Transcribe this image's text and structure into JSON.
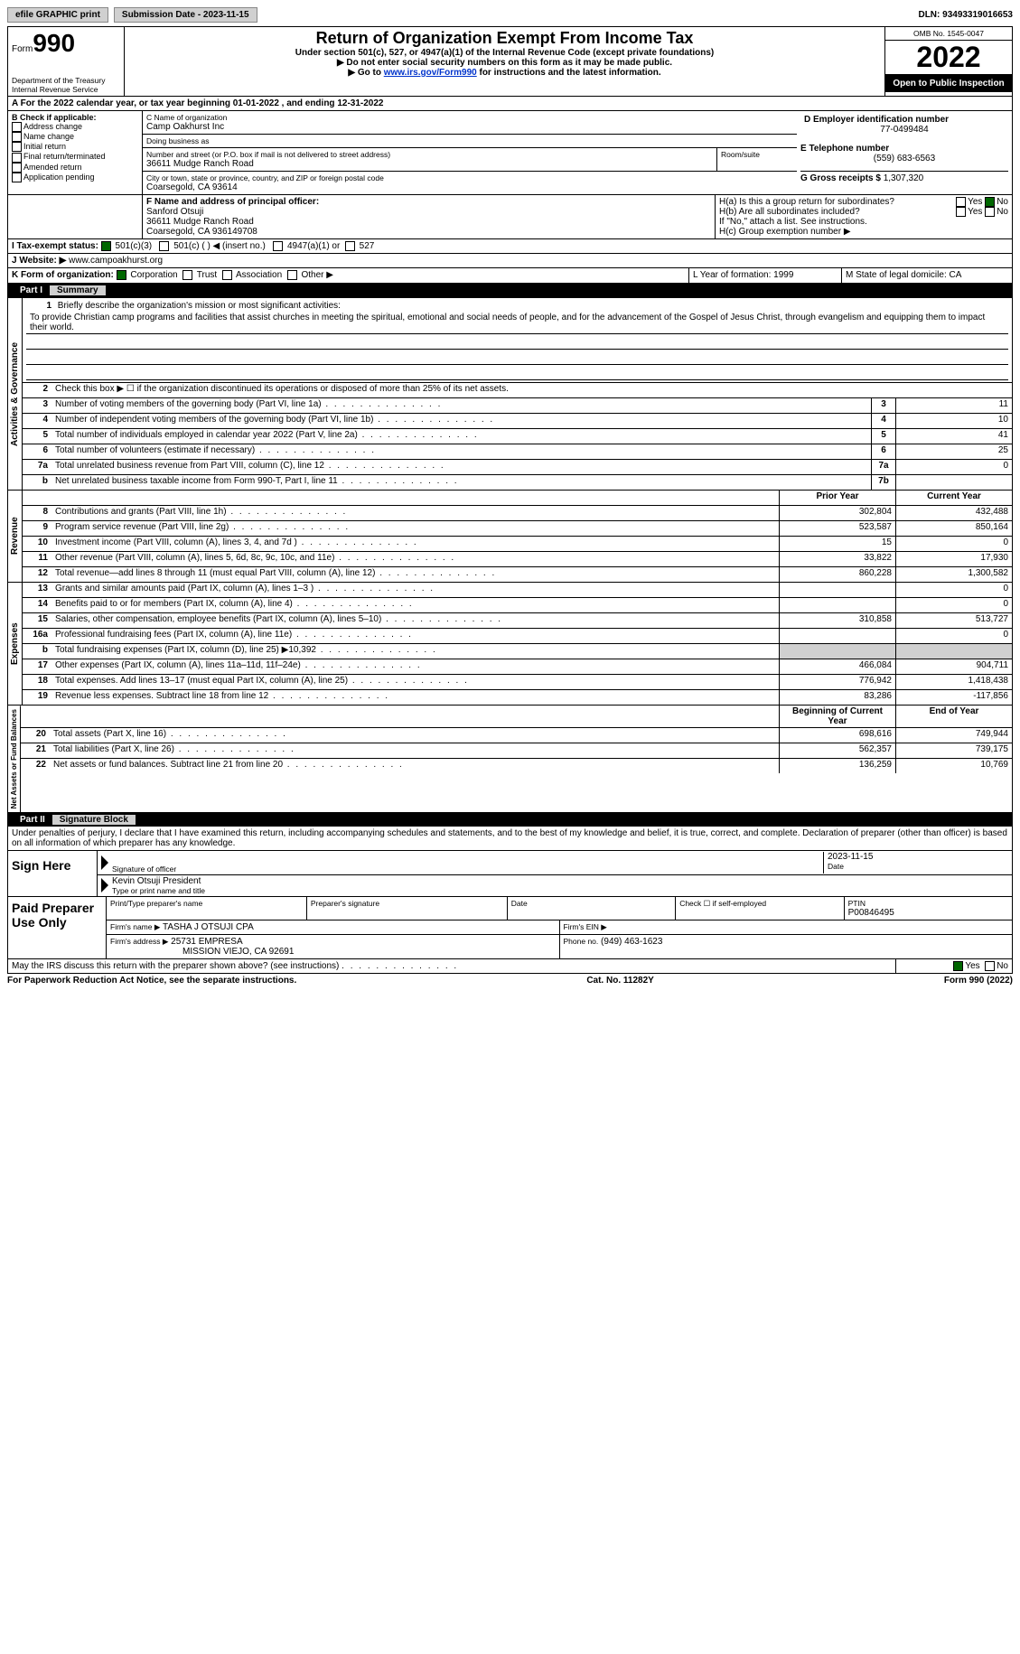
{
  "topbar": {
    "efile": "efile GRAPHIC print",
    "submission": "Submission Date - 2023-11-15",
    "dln": "DLN: 93493319016653"
  },
  "header": {
    "form_label": "Form",
    "form_number": "990",
    "title": "Return of Organization Exempt From Income Tax",
    "subtitle": "Under section 501(c), 527, or 4947(a)(1) of the Internal Revenue Code (except private foundations)",
    "note1": "▶ Do not enter social security numbers on this form as it may be made public.",
    "note2_pre": "▶ Go to ",
    "note2_link": "www.irs.gov/Form990",
    "note2_post": " for instructions and the latest information.",
    "dept": "Department of the Treasury",
    "irs": "Internal Revenue Service",
    "omb": "OMB No. 1545-0047",
    "year": "2022",
    "inspection": "Open to Public Inspection"
  },
  "sectionA": {
    "text": "A For the 2022 calendar year, or tax year beginning 01-01-2022    , and ending 12-31-2022"
  },
  "sectionB": {
    "label": "B Check if applicable:",
    "opts": [
      "Address change",
      "Name change",
      "Initial return",
      "Final return/terminated",
      "Amended return",
      "Application pending"
    ]
  },
  "sectionC": {
    "name_label": "C Name of organization",
    "name": "Camp Oakhurst Inc",
    "dba_label": "Doing business as",
    "dba": "",
    "street_label": "Number and street (or P.O. box if mail is not delivered to street address)",
    "street": "36611 Mudge Ranch Road",
    "room_label": "Room/suite",
    "city_label": "City or town, state or province, country, and ZIP or foreign postal code",
    "city": "Coarsegold, CA  93614"
  },
  "sectionD": {
    "label": "D Employer identification number",
    "ein": "77-0499484"
  },
  "sectionE": {
    "label": "E Telephone number",
    "phone": "(559) 683-6563"
  },
  "sectionG": {
    "label": "G Gross receipts $",
    "amount": "1,307,320"
  },
  "sectionF": {
    "label": "F  Name and address of principal officer:",
    "name": "Sanford Otsuji",
    "street": "36611 Mudge Ranch Road",
    "city": "Coarsegold, CA  936149708"
  },
  "sectionH": {
    "a": "H(a)  Is this a group return for subordinates?",
    "b": "H(b)  Are all subordinates included?",
    "b_note": "If \"No,\" attach a list. See instructions.",
    "c": "H(c)  Group exemption number ▶",
    "yes": "Yes",
    "no": "No"
  },
  "sectionI": {
    "label": "I    Tax-exempt status:",
    "opt1": "501(c)(3)",
    "opt2": "501(c) (   ) ◀ (insert no.)",
    "opt3": "4947(a)(1) or",
    "opt4": "527"
  },
  "sectionJ": {
    "label": "J   Website: ▶",
    "url": "www.campoakhurst.org"
  },
  "sectionK": {
    "label": "K Form of organization:",
    "opts": [
      "Corporation",
      "Trust",
      "Association",
      "Other ▶"
    ]
  },
  "sectionL": {
    "label": "L Year of formation: 1999"
  },
  "sectionM": {
    "label": "M State of legal domicile: CA"
  },
  "part1": {
    "num": "Part I",
    "title": "Summary",
    "groups": {
      "activities": "Activities & Governance",
      "revenue": "Revenue",
      "expenses": "Expenses",
      "net": "Net Assets or Fund Balances"
    },
    "line1_label": "Briefly describe the organization's mission or most significant activities:",
    "mission": "To provide Christian camp programs and facilities that assist churches in meeting the spiritual, emotional and social needs of people, and for the advancement of the Gospel of Jesus Christ, through evangelism and equipping them to impact their world.",
    "line2": "Check this box ▶ ☐  if the organization discontinued its operations or disposed of more than 25% of its net assets.",
    "col_prior": "Prior Year",
    "col_current": "Current Year",
    "col_beg": "Beginning of Current Year",
    "col_end": "End of Year",
    "rows_gov": [
      {
        "n": "3",
        "label": "Number of voting members of the governing body (Part VI, line 1a)",
        "box": "3",
        "val": "11"
      },
      {
        "n": "4",
        "label": "Number of independent voting members of the governing body (Part VI, line 1b)",
        "box": "4",
        "val": "10"
      },
      {
        "n": "5",
        "label": "Total number of individuals employed in calendar year 2022 (Part V, line 2a)",
        "box": "5",
        "val": "41"
      },
      {
        "n": "6",
        "label": "Total number of volunteers (estimate if necessary)",
        "box": "6",
        "val": "25"
      },
      {
        "n": "7a",
        "label": "Total unrelated business revenue from Part VIII, column (C), line 12",
        "box": "7a",
        "val": "0"
      },
      {
        "n": "b",
        "label": "Net unrelated business taxable income from Form 990-T, Part I, line 11",
        "box": "7b",
        "val": ""
      }
    ],
    "rows_rev": [
      {
        "n": "8",
        "label": "Contributions and grants (Part VIII, line 1h)",
        "p": "302,804",
        "c": "432,488"
      },
      {
        "n": "9",
        "label": "Program service revenue (Part VIII, line 2g)",
        "p": "523,587",
        "c": "850,164"
      },
      {
        "n": "10",
        "label": "Investment income (Part VIII, column (A), lines 3, 4, and 7d )",
        "p": "15",
        "c": "0"
      },
      {
        "n": "11",
        "label": "Other revenue (Part VIII, column (A), lines 5, 6d, 8c, 9c, 10c, and 11e)",
        "p": "33,822",
        "c": "17,930"
      },
      {
        "n": "12",
        "label": "Total revenue—add lines 8 through 11 (must equal Part VIII, column (A), line 12)",
        "p": "860,228",
        "c": "1,300,582"
      }
    ],
    "rows_exp": [
      {
        "n": "13",
        "label": "Grants and similar amounts paid (Part IX, column (A), lines 1–3 )",
        "p": "",
        "c": "0"
      },
      {
        "n": "14",
        "label": "Benefits paid to or for members (Part IX, column (A), line 4)",
        "p": "",
        "c": "0"
      },
      {
        "n": "15",
        "label": "Salaries, other compensation, employee benefits (Part IX, column (A), lines 5–10)",
        "p": "310,858",
        "c": "513,727"
      },
      {
        "n": "16a",
        "label": "Professional fundraising fees (Part IX, column (A), line 11e)",
        "p": "",
        "c": "0"
      },
      {
        "n": "b",
        "label": "Total fundraising expenses (Part IX, column (D), line 25) ▶10,392",
        "p": "shaded",
        "c": "shaded"
      },
      {
        "n": "17",
        "label": "Other expenses (Part IX, column (A), lines 11a–11d, 11f–24e)",
        "p": "466,084",
        "c": "904,711"
      },
      {
        "n": "18",
        "label": "Total expenses. Add lines 13–17 (must equal Part IX, column (A), line 25)",
        "p": "776,942",
        "c": "1,418,438"
      },
      {
        "n": "19",
        "label": "Revenue less expenses. Subtract line 18 from line 12",
        "p": "83,286",
        "c": "-117,856"
      }
    ],
    "rows_net": [
      {
        "n": "20",
        "label": "Total assets (Part X, line 16)",
        "p": "698,616",
        "c": "749,944"
      },
      {
        "n": "21",
        "label": "Total liabilities (Part X, line 26)",
        "p": "562,357",
        "c": "739,175"
      },
      {
        "n": "22",
        "label": "Net assets or fund balances. Subtract line 21 from line 20",
        "p": "136,259",
        "c": "10,769"
      }
    ]
  },
  "part2": {
    "num": "Part II",
    "title": "Signature Block",
    "declaration": "Under penalties of perjury, I declare that I have examined this return, including accompanying schedules and statements, and to the best of my knowledge and belief, it is true, correct, and complete. Declaration of preparer (other than officer) is based on all information of which preparer has any knowledge.",
    "sign_here": "Sign Here",
    "sig_officer": "Signature of officer",
    "sig_date": "2023-11-15",
    "date_label": "Date",
    "officer_name": "Kevin Otsuji President",
    "name_label": "Type or print name and title",
    "paid": "Paid Preparer Use Only",
    "prep_name_label": "Print/Type preparer's name",
    "prep_sig_label": "Preparer's signature",
    "prep_date_label": "Date",
    "self_emp": "Check ☐ if self-employed",
    "ptin_label": "PTIN",
    "ptin": "P00846495",
    "firm_name_label": "Firm's name    ▶",
    "firm_name": "TASHA J OTSUJI CPA",
    "firm_ein_label": "Firm's EIN ▶",
    "firm_addr_label": "Firm's address ▶",
    "firm_addr1": "25731 EMPRESA",
    "firm_addr2": "MISSION VIEJO, CA  92691",
    "firm_phone_label": "Phone no.",
    "firm_phone": "(949) 463-1623",
    "discuss": "May the IRS discuss this return with the preparer shown above? (see instructions)",
    "yes": "Yes",
    "no": "No"
  },
  "footer": {
    "pra": "For Paperwork Reduction Act Notice, see the separate instructions.",
    "cat": "Cat. No. 11282Y",
    "form": "Form 990 (2022)"
  },
  "colors": {
    "link": "#0033cc",
    "check": "#006600",
    "shade": "#d0d0d0"
  }
}
